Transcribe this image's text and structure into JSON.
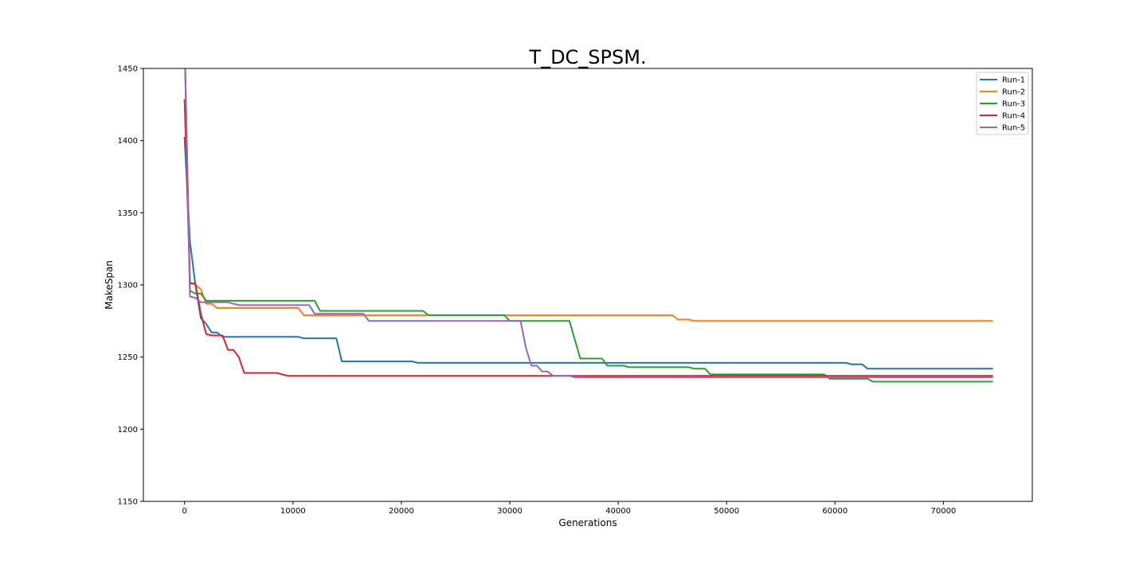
{
  "chart_data": {
    "type": "line",
    "title": "T_DC_SPSM.",
    "xlabel": "Generations",
    "ylabel": "MakeSpan",
    "xlim": [
      -3800,
      78200
    ],
    "ylim": [
      1150,
      1450
    ],
    "xticks": [
      0,
      10000,
      20000,
      30000,
      40000,
      50000,
      60000,
      70000
    ],
    "yticks": [
      1150,
      1200,
      1250,
      1300,
      1350,
      1400,
      1450
    ],
    "grid": false,
    "legend": "top-right",
    "series": [
      {
        "name": "Run-1",
        "color": "#1f77b4",
        "x": [
          0,
          500,
          1000,
          1500,
          2000,
          2500,
          3000,
          3500,
          10500,
          11000,
          14000,
          14500,
          21000,
          21500,
          61000,
          61500,
          62500,
          63000,
          74500
        ],
        "y": [
          1402,
          1330,
          1300,
          1277,
          1273,
          1267,
          1267,
          1264,
          1264,
          1263,
          1263,
          1247,
          1247,
          1246,
          1246,
          1245,
          1245,
          1242,
          1242
        ]
      },
      {
        "name": "Run-2",
        "color": "#ff7f0e",
        "x": [
          0,
          500,
          1000,
          1500,
          2000,
          2500,
          3000,
          10500,
          11000,
          45000,
          45500,
          46500,
          47000,
          74500
        ],
        "y": [
          1470,
          1302,
          1300,
          1297,
          1287,
          1287,
          1284,
          1284,
          1279,
          1279,
          1276,
          1276,
          1275,
          1275
        ]
      },
      {
        "name": "Run-3",
        "color": "#2ca02c",
        "x": [
          0,
          500,
          1000,
          1500,
          2000,
          12000,
          12500,
          22000,
          22500,
          29500,
          30000,
          35500,
          36000,
          36500,
          38500,
          39000,
          40500,
          41000,
          46500,
          47000,
          48000,
          48500,
          59000,
          59500,
          63000,
          63500,
          74500
        ],
        "y": [
          1470,
          1296,
          1294,
          1294,
          1289,
          1289,
          1282,
          1282,
          1279,
          1279,
          1275,
          1275,
          1262,
          1249,
          1249,
          1244,
          1244,
          1243,
          1243,
          1242,
          1242,
          1238,
          1238,
          1235,
          1235,
          1233,
          1233
        ]
      },
      {
        "name": "Run-4",
        "color": "#d62728",
        "x": [
          0,
          500,
          1000,
          1500,
          2000,
          2500,
          3500,
          4000,
          4500,
          5000,
          5500,
          8500,
          9500,
          74500
        ],
        "y": [
          1428,
          1301,
          1301,
          1280,
          1266,
          1265,
          1265,
          1255,
          1255,
          1250,
          1239,
          1239,
          1237,
          1237
        ]
      },
      {
        "name": "Run-5",
        "color": "#9467bd",
        "x": [
          0,
          500,
          1000,
          1500,
          4000,
          5000,
          11500,
          12000,
          16500,
          17000,
          30500,
          31000,
          31500,
          32000,
          32500,
          33000,
          33500,
          34000,
          35500,
          36000,
          74500
        ],
        "y": [
          1470,
          1292,
          1291,
          1288,
          1288,
          1286,
          1286,
          1280,
          1280,
          1275,
          1275,
          1275,
          1256,
          1244,
          1244,
          1240,
          1240,
          1237,
          1237,
          1236,
          1236
        ]
      }
    ]
  }
}
